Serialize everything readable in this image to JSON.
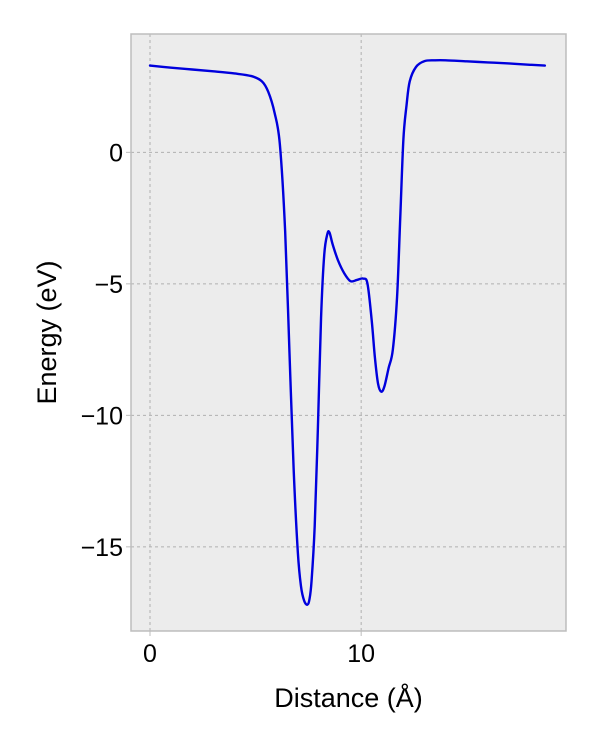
{
  "chart_data": {
    "type": "line",
    "title": "",
    "xlabel": "Distance (Å)",
    "ylabel": "Energy (eV)",
    "xlim": [
      -0.9,
      19.7
    ],
    "ylim": [
      -18.2,
      4.5
    ],
    "xticks": [
      0,
      10
    ],
    "xtick_labels": [
      "0",
      "10"
    ],
    "yticks": [
      0,
      -5,
      -10,
      -15
    ],
    "ytick_labels": [
      "0",
      "−5",
      "−10",
      "−15"
    ],
    "grid": true,
    "legend": "none",
    "colors": {
      "line": "#0000dd",
      "plot_background": "#ececec",
      "grid": "#b0b0b0",
      "frame": "#bdbdbd"
    },
    "series": [
      {
        "x": [
          0,
          1,
          2,
          3,
          4,
          4.8,
          5.3,
          5.6,
          5.9,
          6.15,
          6.4,
          6.6,
          6.8,
          7.0,
          7.15,
          7.3,
          7.45,
          7.55,
          7.65,
          7.8,
          7.95,
          8.1,
          8.25,
          8.4,
          8.5,
          8.65,
          8.9,
          9.2,
          9.5,
          9.8,
          10.1,
          10.3,
          10.5,
          10.65,
          10.8,
          10.95,
          11.1,
          11.3,
          11.5,
          11.7,
          11.85,
          12.0,
          12.15,
          12.3,
          12.6,
          13.0,
          13.5,
          14.0,
          15,
          16,
          17,
          18,
          18.7
        ],
        "y": [
          3.3,
          3.22,
          3.15,
          3.08,
          3.0,
          2.9,
          2.7,
          2.3,
          1.5,
          0.3,
          -3.0,
          -7.5,
          -12.0,
          -15.2,
          -16.5,
          -17.05,
          -17.2,
          -17.0,
          -16.3,
          -14.2,
          -10.5,
          -6.3,
          -3.9,
          -3.1,
          -3.05,
          -3.5,
          -4.1,
          -4.6,
          -4.9,
          -4.85,
          -4.8,
          -5.0,
          -6.4,
          -7.8,
          -8.8,
          -9.1,
          -8.9,
          -8.2,
          -7.5,
          -5.5,
          -2.5,
          0.5,
          1.8,
          2.7,
          3.25,
          3.47,
          3.5,
          3.5,
          3.46,
          3.42,
          3.38,
          3.33,
          3.3
        ]
      }
    ]
  }
}
